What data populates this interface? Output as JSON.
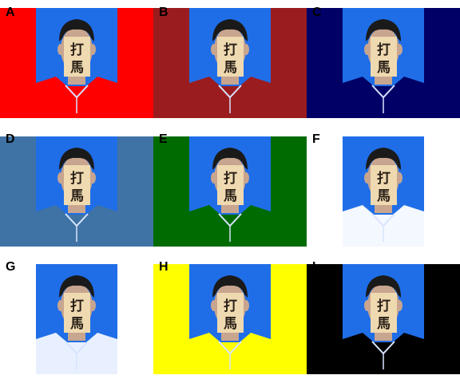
{
  "panels": [
    {
      "label": "A",
      "background": "#ff0000",
      "shirt": "#ff0000"
    },
    {
      "label": "B",
      "background": "#9b1c1f",
      "shirt": "#9b1c1f"
    },
    {
      "label": "C",
      "background": "#000066",
      "shirt": "#000066"
    },
    {
      "label": "D",
      "background": "#3f73a5",
      "shirt": "#3f73a5"
    },
    {
      "label": "E",
      "background": "#006b00",
      "shirt": "#006b00"
    },
    {
      "label": "F",
      "background": "#ffffff",
      "shirt": "#f4f8ff"
    },
    {
      "label": "G",
      "background": "#ffffff",
      "shirt": "#e8f0ff"
    },
    {
      "label": "H",
      "background": "#ffff00",
      "shirt": "#ffff00"
    },
    {
      "label": "I",
      "background": "#000000",
      "shirt": "#000000"
    }
  ],
  "portrait": {
    "photo_background": "#1f6ee8",
    "hair": "#1a1a1a",
    "skin": "#c8a58f",
    "mask": "#efd9b0",
    "mask_text_line1": "打",
    "mask_text_line2": "馬",
    "mask_text_color": "#2a2018"
  }
}
